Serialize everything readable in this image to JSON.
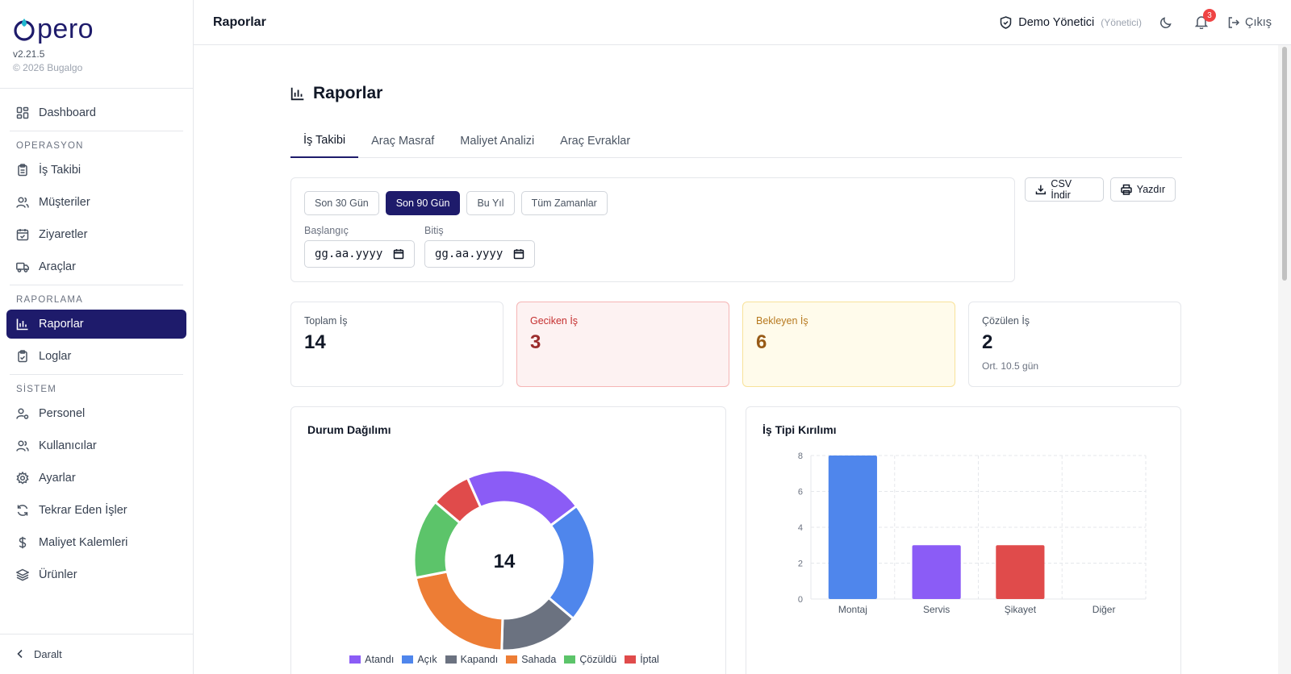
{
  "app": {
    "brand": "pero",
    "version": "v2.21.5",
    "copyright": "© 2026 Bugalgo"
  },
  "sidebar": {
    "top_item": {
      "label": "Dashboard",
      "icon": "dashboard-icon"
    },
    "sections": [
      {
        "title": "OPERASYON",
        "items": [
          {
            "label": "İş Takibi",
            "icon": "clipboard-icon"
          },
          {
            "label": "Müşteriler",
            "icon": "users-icon"
          },
          {
            "label": "Ziyaretler",
            "icon": "calendar-check-icon"
          },
          {
            "label": "Araçlar",
            "icon": "truck-icon"
          }
        ]
      },
      {
        "title": "RAPORLAMA",
        "items": [
          {
            "label": "Raporlar",
            "icon": "bar-chart-icon",
            "active": true
          },
          {
            "label": "Loglar",
            "icon": "clipboard-check-icon"
          }
        ]
      },
      {
        "title": "SİSTEM",
        "items": [
          {
            "label": "Personel",
            "icon": "user-cog-icon"
          },
          {
            "label": "Kullanıcılar",
            "icon": "users-icon"
          },
          {
            "label": "Ayarlar",
            "icon": "gear-icon"
          },
          {
            "label": "Tekrar Eden İşler",
            "icon": "refresh-icon"
          },
          {
            "label": "Maliyet Kalemleri",
            "icon": "dollar-icon"
          },
          {
            "label": "Ürünler",
            "icon": "layers-icon"
          }
        ]
      }
    ],
    "collapse_label": "Daralt"
  },
  "header": {
    "title": "Raporlar",
    "user_name": "Demo Yönetici",
    "user_role": "(Yönetici)",
    "notification_count": "3",
    "logout_label": "Çıkış"
  },
  "page": {
    "title": "Raporlar",
    "tabs": [
      {
        "label": "İş Takibi",
        "active": true
      },
      {
        "label": "Araç Masraf"
      },
      {
        "label": "Maliyet Analizi"
      },
      {
        "label": "Araç Evraklar"
      }
    ],
    "range_buttons": [
      {
        "label": "Son 30 Gün"
      },
      {
        "label": "Son 90 Gün",
        "active": true
      },
      {
        "label": "Bu Yıl"
      },
      {
        "label": "Tüm Zamanlar"
      }
    ],
    "start_label": "Başlangıç",
    "end_label": "Bitiş",
    "start_placeholder": "gg.aa.yyyy",
    "end_placeholder": "gg.aa.yyyy",
    "csv_label": "CSV İndir",
    "print_label": "Yazdır",
    "stats": [
      {
        "label": "Toplam İş",
        "value": "14",
        "style": "neutral"
      },
      {
        "label": "Geciken İş",
        "value": "3",
        "style": "red"
      },
      {
        "label": "Bekleyen İş",
        "value": "6",
        "style": "yellow"
      },
      {
        "label": "Çözülen İş",
        "value": "2",
        "sub": "Ort. 10.5 gün",
        "style": "neutral"
      }
    ]
  },
  "colors": {
    "accent": "#1e1b6b",
    "purple": "#8b5cf6",
    "blue": "#4f86ec",
    "gray": "#6b7280",
    "orange": "#ed7d35",
    "green": "#5cc46a",
    "red": "#e04b4b"
  },
  "chart_data": [
    {
      "type": "pie",
      "title": "Durum Dağılımı",
      "center_label": "14",
      "categories": [
        "Atandı",
        "Açık",
        "Kapandı",
        "Sahada",
        "Çözüldü",
        "İptal"
      ],
      "values": [
        3,
        3,
        2,
        3,
        2,
        1
      ],
      "colors": [
        "#8b5cf6",
        "#4f86ec",
        "#6b7280",
        "#ed7d35",
        "#5cc46a",
        "#e04b4b"
      ],
      "legend": "bottom"
    },
    {
      "type": "bar",
      "title": "İş Tipi Kırılımı",
      "categories": [
        "Montaj",
        "Servis",
        "Şikayet",
        "Diğer"
      ],
      "values": [
        8,
        3,
        3,
        0
      ],
      "colors": [
        "#4f86ec",
        "#8b5cf6",
        "#e04b4b",
        "#ed7d35"
      ],
      "ylim": [
        0,
        8
      ],
      "yticks": [
        "0",
        "2",
        "4",
        "6",
        "8"
      ],
      "grid": true
    }
  ]
}
